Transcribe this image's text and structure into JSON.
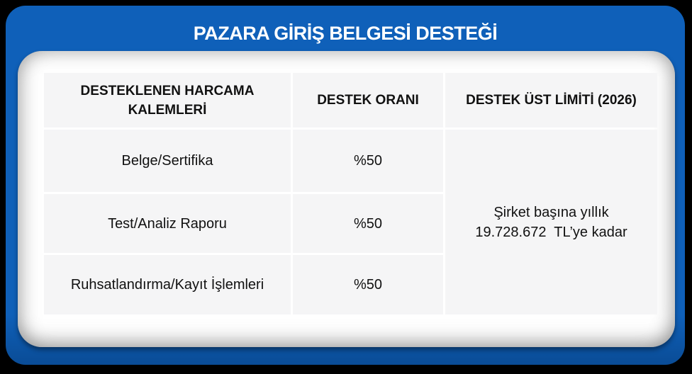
{
  "header": {
    "title": "PAZARA GİRİŞ BELGESİ DESTEĞİ"
  },
  "table": {
    "columns": [
      {
        "label": "DESTEKLENEN HARCAMA KALEMLERİ"
      },
      {
        "label": "DESTEK ORANI"
      },
      {
        "label": "DESTEK ÜST LİMİTİ (2026)"
      }
    ],
    "rows": [
      {
        "item": "Belge/Sertifika",
        "rate": "%50"
      },
      {
        "item": "Test/Analiz Raporu",
        "rate": "%50"
      },
      {
        "item": "Ruhsatlandırma/Kayıt İşlemleri",
        "rate": "%50"
      }
    ],
    "limit": "Şirket başına yıllık\n19.728.672  TL’ye kadar"
  },
  "colors": {
    "background": "#000000",
    "panel_blue": "#0f60b9",
    "panel_blue_dark": "#0a4c96",
    "card_white": "#ffffff",
    "cell_gray": "#f5f5f6",
    "text": "#111111",
    "title_text": "#ffffff"
  }
}
